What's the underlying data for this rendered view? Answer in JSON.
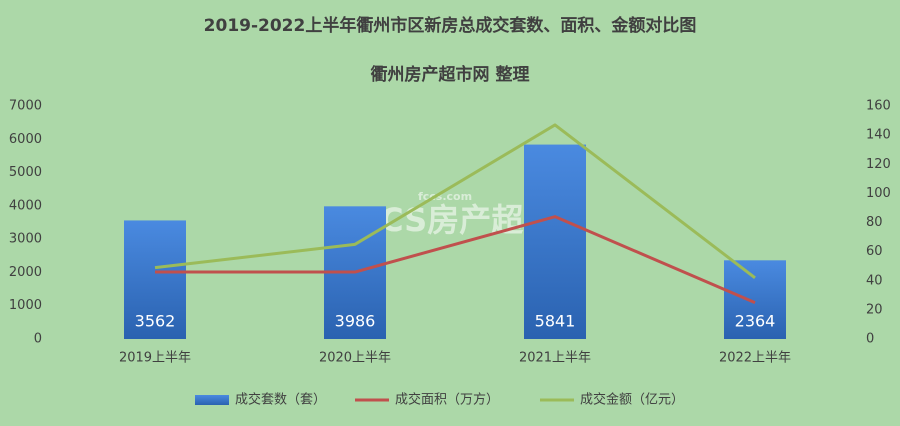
{
  "chart_data": {
    "type": "bar",
    "title": "2019-2022上半年衢州市区新房总成交套数、面积、金额对比图",
    "subtitle": "衢州房产超市网 整理",
    "watermark_url": "fccs.com",
    "watermark": "FCCS房产超市",
    "categories": [
      "2019上半年",
      "2020上半年",
      "2021上半年",
      "2022上半年"
    ],
    "series": [
      {
        "name": "成交套数（套）",
        "type": "bar",
        "color": "#3a78c9",
        "values": [
          3562,
          3986,
          5841,
          2364
        ]
      },
      {
        "name": "成交面积（万方）",
        "type": "line",
        "axis": "y2",
        "color": "#c0504d",
        "values": [
          46,
          46,
          84,
          25
        ]
      },
      {
        "name": "成交金额（亿元）",
        "type": "line",
        "axis": "y2",
        "color": "#9bbb59",
        "values": [
          49,
          65,
          147,
          42
        ]
      }
    ],
    "ylim": [
      0,
      7000
    ],
    "yticks": [
      0,
      1000,
      2000,
      3000,
      4000,
      5000,
      6000,
      7000
    ],
    "y2lim": [
      0,
      160
    ],
    "y2ticks": [
      0,
      20,
      40,
      60,
      80,
      100,
      120,
      140,
      160
    ],
    "legend": "bottom"
  }
}
